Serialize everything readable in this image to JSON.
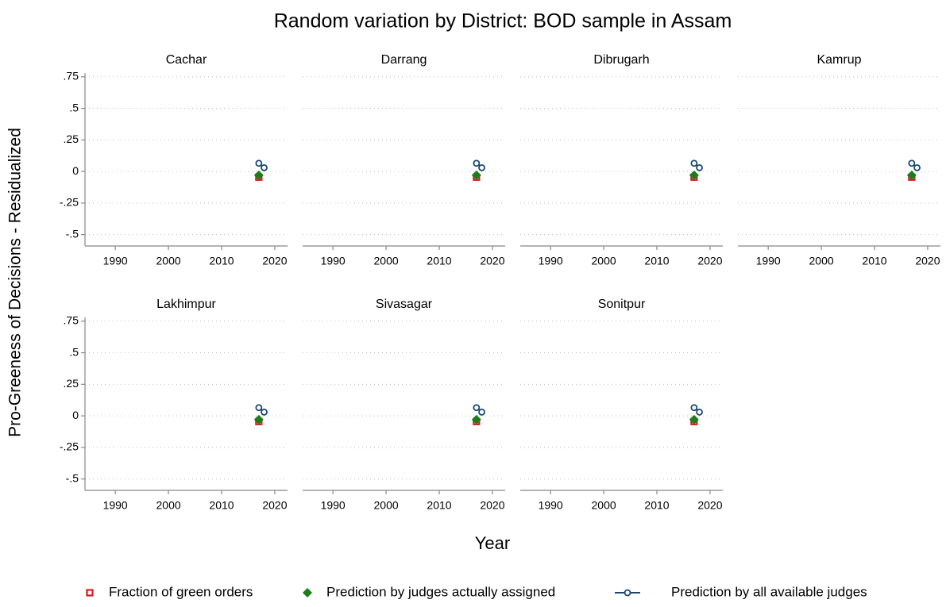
{
  "chart_data": {
    "type": "line",
    "title": "Random variation by District: BOD sample in Assam",
    "x_label": "Year",
    "y_label": "Pro-Greeness of Decisions - Residualized",
    "xlim": [
      1984.3,
      2022.4
    ],
    "xticks": [
      1990,
      2000,
      2010,
      2020
    ],
    "ylim": [
      -0.59,
      0.78
    ],
    "yticks": [
      {
        "value": 0.75,
        "label": ".75"
      },
      {
        "value": 0.5,
        "label": ".5"
      },
      {
        "value": 0.25,
        "label": ".25"
      },
      0,
      {
        "value": -0.25,
        "label": "-.25"
      },
      {
        "value": -0.5,
        "label": "-.5"
      }
    ],
    "grid": true,
    "series": [
      {
        "name": "Fraction of green orders",
        "color": "#d7191c",
        "marker": "square",
        "connect": false
      },
      {
        "name": "Prediction by judges actually assigned",
        "color": "#1a7f1a",
        "marker": "diamond",
        "connect": false
      },
      {
        "name": "Prediction by all available judges",
        "color": "#1a476f",
        "marker": "circle",
        "connect": true
      }
    ],
    "panels": [
      {
        "title": "Cachar",
        "x": [
          2017,
          2018
        ],
        "values": [
          [
            -0.045,
            null
          ],
          [
            -0.03,
            null
          ],
          [
            0.065,
            0.03
          ]
        ]
      },
      {
        "title": "Darrang",
        "x": [
          2017,
          2018
        ],
        "values": [
          [
            -0.045,
            null
          ],
          [
            -0.03,
            null
          ],
          [
            0.065,
            0.03
          ]
        ]
      },
      {
        "title": "Dibrugarh",
        "x": [
          2017,
          2018
        ],
        "values": [
          [
            -0.045,
            null
          ],
          [
            -0.03,
            null
          ],
          [
            0.065,
            0.03
          ]
        ]
      },
      {
        "title": "Kamrup",
        "x": [
          2017,
          2018
        ],
        "values": [
          [
            -0.045,
            null
          ],
          [
            -0.03,
            null
          ],
          [
            0.065,
            0.03
          ]
        ]
      },
      {
        "title": "Lakhimpur",
        "x": [
          2017,
          2018
        ],
        "values": [
          [
            -0.045,
            null
          ],
          [
            -0.03,
            null
          ],
          [
            0.065,
            0.03
          ]
        ]
      },
      {
        "title": "Sivasagar",
        "x": [
          2017,
          2018
        ],
        "values": [
          [
            -0.045,
            null
          ],
          [
            -0.03,
            null
          ],
          [
            0.065,
            0.03
          ]
        ]
      },
      {
        "title": "Sonitpur",
        "x": [
          2017,
          2018
        ],
        "values": [
          [
            -0.045,
            null
          ],
          [
            -0.03,
            null
          ],
          [
            0.065,
            0.03
          ]
        ]
      }
    ]
  }
}
